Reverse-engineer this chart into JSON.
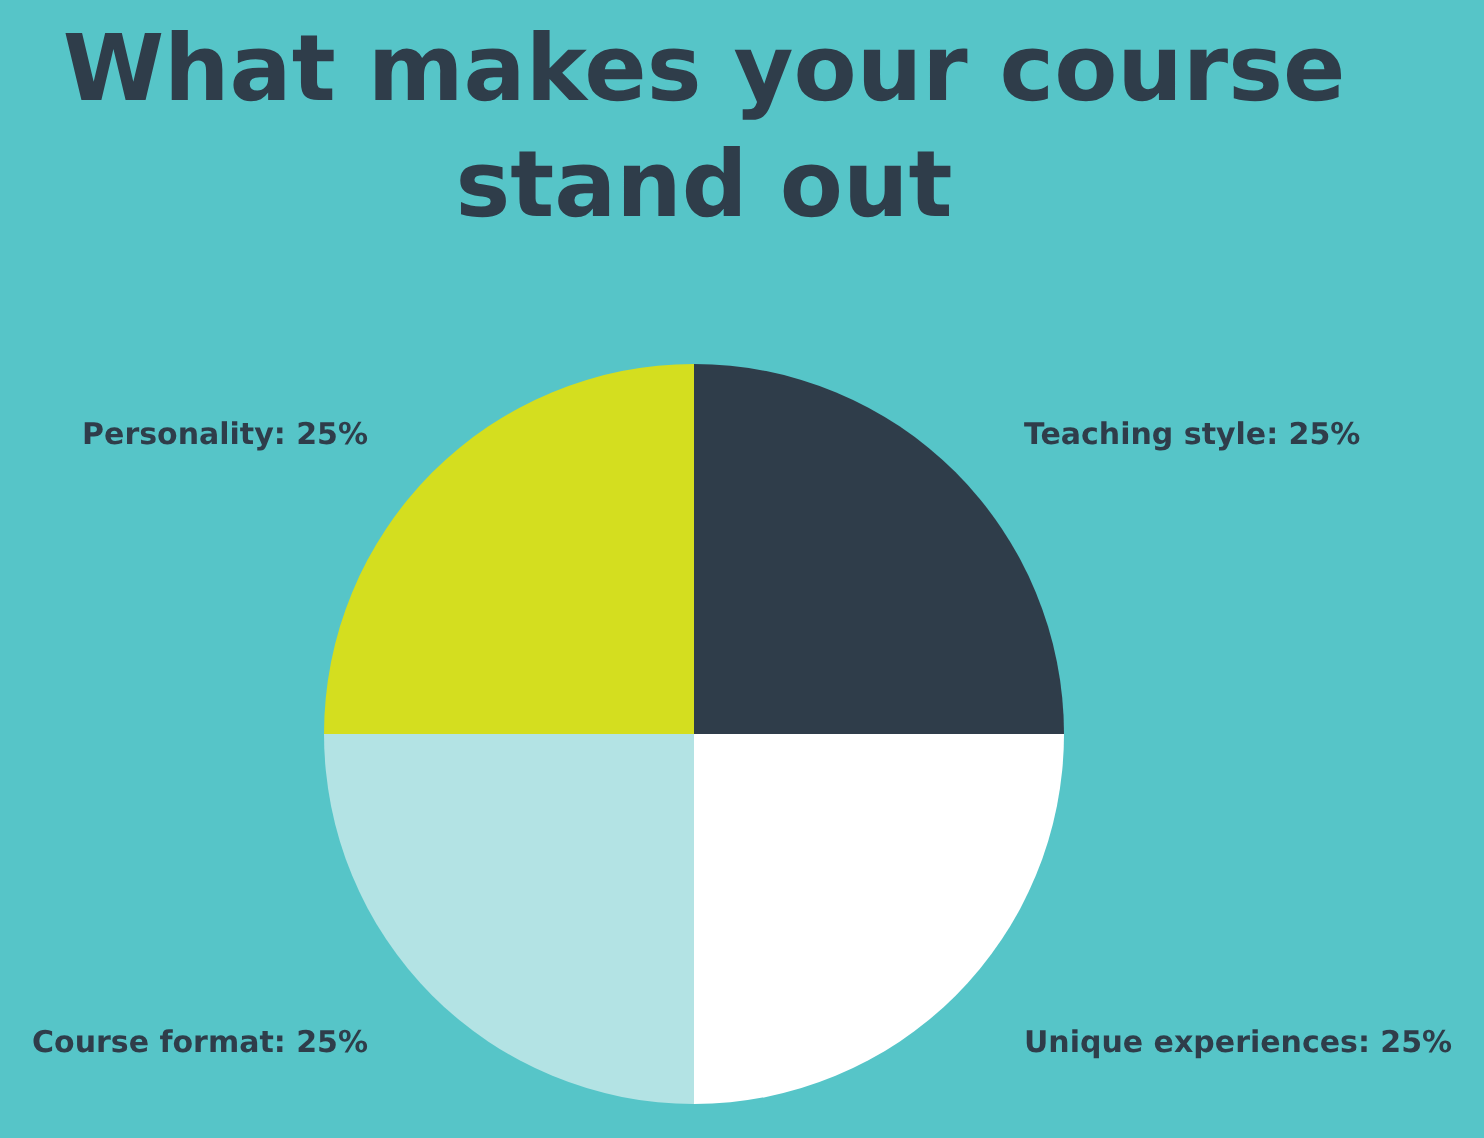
{
  "chart_data": {
    "type": "pie",
    "title": "What makes your course stand out",
    "categories": [
      "Teaching style",
      "Unique experiences",
      "Course format",
      "Personality"
    ],
    "values": [
      25,
      25,
      25,
      25
    ],
    "value_labels": [
      "25%",
      "25%",
      "25%",
      "25%"
    ],
    "colors": [
      "#2f3d4a",
      "#ffffff",
      "#b3e3e4",
      "#d4de1f"
    ]
  }
}
